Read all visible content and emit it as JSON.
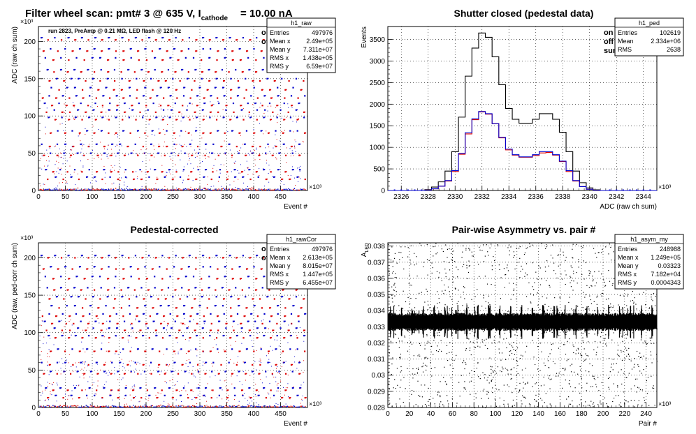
{
  "page": {
    "main_title_prefix": "Filter wheel scan: pmt#   3 @   635 V, I",
    "main_title_subscript": "cathode",
    "main_title_suffix": "= 10.00 nA"
  },
  "chart_data": [
    {
      "id": "raw",
      "type": "scatter",
      "title": "",
      "subtitle": "run 2823, PreAmp @ 0.21 MΩ, LED flash @  120 Hz",
      "xlabel": "Event #",
      "ylabel": "ADC (raw ch sum)",
      "x_exponent": "×10³",
      "y_exponent": "×10³",
      "xlim": [
        0,
        500
      ],
      "ylim": [
        0,
        220
      ],
      "xticks": [
        0,
        50,
        100,
        150,
        200,
        250,
        300,
        350,
        400,
        450
      ],
      "yticks": [
        0,
        50,
        100,
        150,
        200
      ],
      "grid": true,
      "legend_position": "top-right",
      "series": [
        {
          "name": "on",
          "color": "#0000cc"
        },
        {
          "name": "off",
          "color": "#dd0000"
        }
      ],
      "level_y": [
        205,
        190,
        178,
        162,
        150,
        138,
        127,
        117,
        108,
        98,
        80,
        62,
        50,
        28,
        18
      ],
      "stats": {
        "name": "h1_raw",
        "rows": [
          {
            "label": "Entries",
            "value": "497976"
          },
          {
            "label": "Mean x",
            "value": "2.49e+05"
          },
          {
            "label": "Mean y",
            "value": "7.311e+07"
          },
          {
            "label": "RMS x",
            "value": "1.438e+05"
          },
          {
            "label": "RMS y",
            "value": "6.59e+07"
          }
        ]
      }
    },
    {
      "id": "ped",
      "type": "line",
      "title": "Shutter closed (pedestal data)",
      "xlabel": "ADC (raw ch sum)",
      "ylabel": "Events",
      "x_exponent": "×10³",
      "xlim": [
        2325,
        2345
      ],
      "ylim": [
        0,
        3800
      ],
      "xticks": [
        2326,
        2328,
        2330,
        2332,
        2334,
        2336,
        2338,
        2340,
        2342,
        2344
      ],
      "yticks": [
        0,
        500,
        1000,
        1500,
        2000,
        2500,
        3000,
        3500
      ],
      "grid": true,
      "legend_position": "top-right",
      "series": [
        {
          "name": "on",
          "color": "#0000cc"
        },
        {
          "name": "off",
          "color": "#dd0000"
        },
        {
          "name": "sum",
          "color": "#000000"
        }
      ],
      "x": [
        2328,
        2328.5,
        2329,
        2329.5,
        2330,
        2330.5,
        2331,
        2331.5,
        2332,
        2332.5,
        2333,
        2333.5,
        2334,
        2334.5,
        2335,
        2335.5,
        2336,
        2336.5,
        2337,
        2337.5,
        2338,
        2338.5,
        2339,
        2339.5,
        2340,
        2340.5,
        2341
      ],
      "sum_values": [
        20,
        80,
        200,
        450,
        900,
        1700,
        2650,
        3300,
        3650,
        3550,
        3100,
        2450,
        1900,
        1650,
        1560,
        1560,
        1650,
        1780,
        1780,
        1650,
        1350,
        900,
        450,
        180,
        60,
        15,
        0
      ],
      "on_values": [
        10,
        40,
        100,
        230,
        460,
        860,
        1340,
        1660,
        1830,
        1780,
        1550,
        1230,
        960,
        830,
        780,
        780,
        830,
        900,
        900,
        830,
        680,
        460,
        230,
        90,
        30,
        8,
        0
      ],
      "off_values": [
        10,
        40,
        100,
        220,
        440,
        840,
        1310,
        1640,
        1820,
        1770,
        1550,
        1220,
        940,
        820,
        770,
        770,
        810,
        870,
        880,
        820,
        670,
        440,
        220,
        90,
        30,
        7,
        0
      ],
      "stats": {
        "name": "h1_ped",
        "rows": [
          {
            "label": "Entries",
            "value": "102619"
          },
          {
            "label": "Mean",
            "value": "2.334e+06"
          },
          {
            "label": "RMS",
            "value": "2638"
          }
        ]
      }
    },
    {
      "id": "rawCor",
      "type": "scatter",
      "title": "Pedestal-corrected",
      "xlabel": "Event #",
      "ylabel": "ADC (raw, ped-corr ch sum)",
      "x_exponent": "×10³",
      "y_exponent": "×10³",
      "xlim": [
        0,
        500
      ],
      "ylim": [
        0,
        220
      ],
      "xticks": [
        0,
        50,
        100,
        150,
        200,
        250,
        300,
        350,
        400,
        450
      ],
      "yticks": [
        0,
        50,
        100,
        150,
        200
      ],
      "grid": true,
      "legend_position": "top-right",
      "series": [
        {
          "name": "on",
          "color": "#0000cc"
        },
        {
          "name": "off",
          "color": "#dd0000"
        }
      ],
      "level_y": [
        203,
        188,
        175,
        160,
        148,
        136,
        125,
        115,
        106,
        96,
        78,
        60,
        48,
        26,
        16
      ],
      "stats": {
        "name": "h1_rawCor",
        "rows": [
          {
            "label": "Entries",
            "value": "497976"
          },
          {
            "label": "Mean x",
            "value": "2.613e+05"
          },
          {
            "label": "Mean y",
            "value": "8.015e+07"
          },
          {
            "label": "RMS x",
            "value": "1.447e+05"
          },
          {
            "label": "RMS y",
            "value": "6.455e+07"
          }
        ]
      }
    },
    {
      "id": "asym",
      "type": "scatter",
      "title": "Pair-wise Asymmetry vs. pair #",
      "xlabel": "Pair #",
      "ylabel": "A",
      "ylabel_sub": "LED",
      "x_exponent": "×10³",
      "xlim": [
        0,
        250
      ],
      "ylim": [
        0.028,
        0.0382
      ],
      "xticks": [
        0,
        20,
        40,
        60,
        80,
        100,
        120,
        140,
        160,
        180,
        200,
        220,
        240
      ],
      "yticks": [
        0.028,
        0.029,
        0.03,
        0.031,
        0.032,
        0.033,
        0.034,
        0.035,
        0.036,
        0.037,
        0.038
      ],
      "ytick_labels": [
        "0.028",
        "0.029",
        "0.03",
        "0.031",
        "0.032",
        "0.033",
        "0.034",
        "0.035",
        "0.036",
        "0.037",
        "0.038"
      ],
      "grid": true,
      "band_center": 0.0333,
      "band_halfwidth": 0.00045,
      "stats": {
        "name": "h1_asym_my",
        "rows": [
          {
            "label": "Entries",
            "value": "248988"
          },
          {
            "label": "Mean x",
            "value": "1.249e+05"
          },
          {
            "label": "Mean y",
            "value": "0.03323"
          },
          {
            "label": "RMS x",
            "value": "7.182e+04"
          },
          {
            "label": "RMS y",
            "value": "0.0004343"
          }
        ]
      }
    }
  ]
}
